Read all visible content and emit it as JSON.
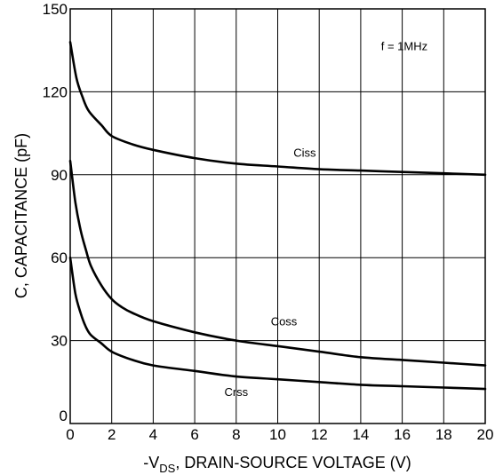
{
  "chart_data": {
    "type": "line",
    "title": "",
    "xlabel_prefix": "-V",
    "xlabel_sub": "DS",
    "xlabel_rest": ", DRAIN-SOURCE VOLTAGE (V)",
    "ylabel": "C, CAPACITANCE (pF)",
    "xlim": [
      0,
      20
    ],
    "ylim": [
      0,
      150
    ],
    "xticks": [
      0,
      2,
      4,
      6,
      8,
      10,
      12,
      14,
      16,
      18,
      20
    ],
    "yticks": [
      0,
      30,
      60,
      90,
      120,
      150
    ],
    "grid": true,
    "annotation": "f = 1MHz",
    "series": [
      {
        "name": "Ciss",
        "x": [
          0,
          0.3,
          0.6,
          0.9,
          1.5,
          2,
          3,
          4,
          6,
          8,
          10,
          12,
          14,
          16,
          18,
          20
        ],
        "y": [
          138,
          125,
          118,
          113,
          108,
          104,
          101,
          99,
          96,
          94,
          93,
          92,
          91.5,
          91,
          90.5,
          90
        ]
      },
      {
        "name": "Coss",
        "x": [
          0,
          0.25,
          0.5,
          0.75,
          1,
          1.5,
          2,
          2.5,
          3,
          4,
          6,
          8,
          10,
          12,
          14,
          16,
          18,
          20
        ],
        "y": [
          95,
          80,
          70,
          63,
          57,
          50,
          45,
          42,
          40,
          37,
          33,
          30,
          28,
          26,
          24,
          23,
          22,
          21
        ]
      },
      {
        "name": "Crss",
        "x": [
          0,
          0.25,
          0.5,
          0.75,
          1,
          1.5,
          2,
          3,
          4,
          6,
          8,
          10,
          12,
          14,
          16,
          18,
          20
        ],
        "y": [
          60,
          47,
          40,
          35,
          32,
          29,
          26,
          23,
          21,
          19,
          17,
          16,
          15,
          14,
          13.5,
          13,
          12.5
        ]
      }
    ],
    "series_label_positions": [
      {
        "name": "Ciss",
        "x": 11.3,
        "y": 96.5
      },
      {
        "name": "Coss",
        "x": 10.3,
        "y": 35.5
      },
      {
        "name": "Crss",
        "x": 8.0,
        "y": 10
      }
    ],
    "annotation_position": {
      "x": 16.1,
      "y": 135
    }
  }
}
